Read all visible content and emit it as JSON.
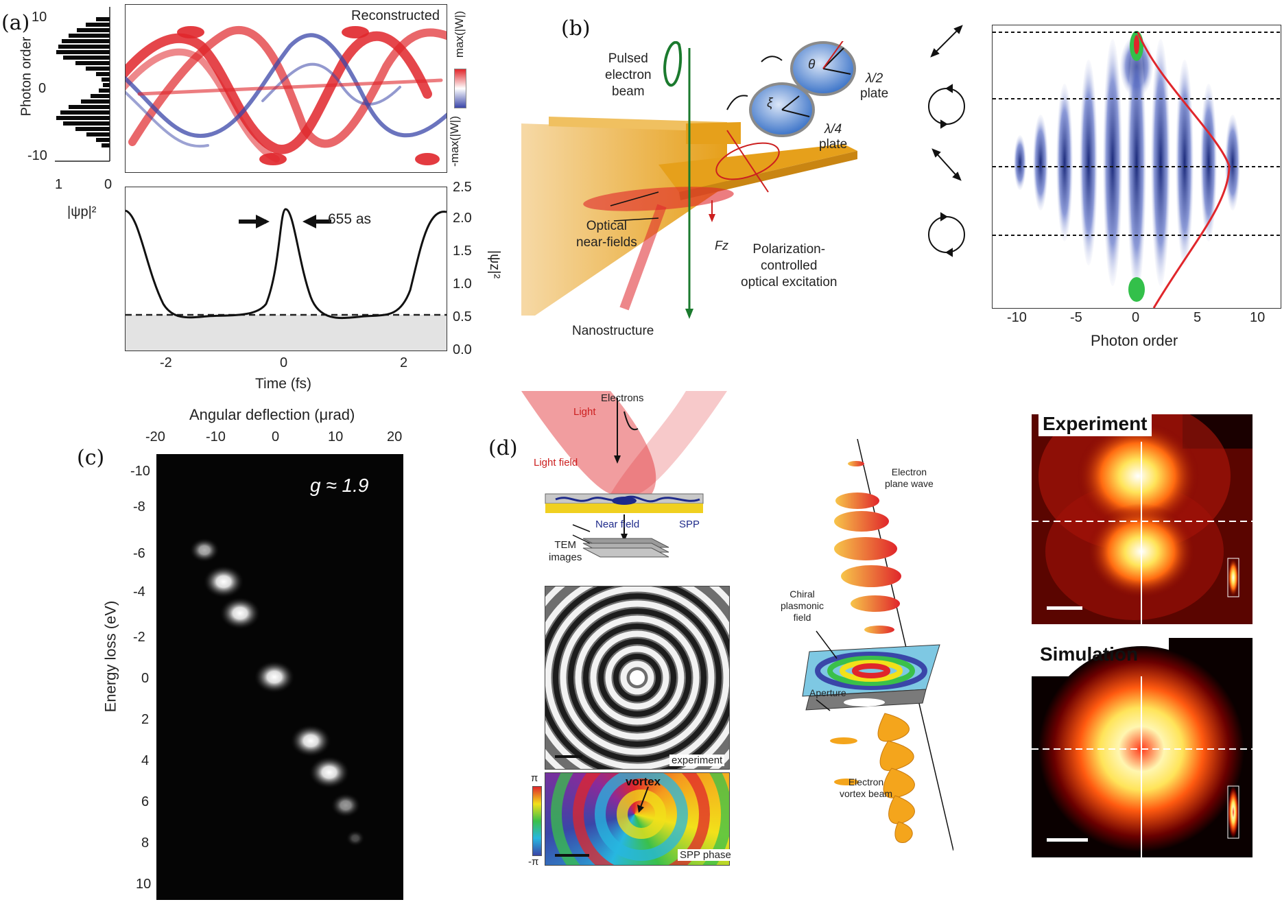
{
  "panels": {
    "a": {
      "letter": "(a)",
      "reconstructed_label": "Reconstructed",
      "colorbar_top": "max(|W|)",
      "colorbar_bottom": "-max(|W|)",
      "hist_ylabel": "Photon order",
      "hist_yticks": [
        "10",
        "0",
        "-10"
      ],
      "hist_xticks": [
        "1",
        "0"
      ],
      "hist_xlabel": "|ψp|²",
      "time_xlabel": "Time (fs)",
      "time_xticks": [
        "-2",
        "0",
        "2"
      ],
      "right_yticks": [
        "2.5",
        "2.0",
        "1.5",
        "1.0",
        "0.5",
        "0.0"
      ],
      "right_ylabel": "|ψz|²",
      "pulse_width": "655 as"
    },
    "b": {
      "letter": "(b)",
      "pulsed_beam": [
        "Pulsed",
        "electron",
        "beam"
      ],
      "half_wave": [
        "λ/2",
        "plate"
      ],
      "quarter_wave": [
        "λ/4",
        "plate"
      ],
      "optical_near_fields": [
        "Optical",
        "near-fields"
      ],
      "fz": "Fz",
      "polarization": [
        "Polarization-",
        "controlled",
        "optical excitation"
      ],
      "nanostructure": "Nanostructure",
      "theta": "θ",
      "xi": "ξ",
      "xlabel": "Photon order",
      "xticks": [
        "-10",
        "-5",
        "0",
        "5",
        "10"
      ]
    },
    "c": {
      "letter": "(c)",
      "top_label": "Angular deflection (μrad)",
      "top_ticks": [
        "-20",
        "-10",
        "0",
        "10",
        "20"
      ],
      "ylabel": "Energy loss (eV)",
      "yticks": [
        "-10",
        "-8",
        "-6",
        "-4",
        "-2",
        "0",
        "2",
        "4",
        "6",
        "8",
        "10"
      ],
      "g_label": "g ≈ 1.9"
    },
    "d": {
      "letter": "(d)",
      "electrons": "Electrons",
      "light": "Light",
      "light_field": "Light field",
      "near_field": "Near field",
      "spp": "SPP",
      "tem": [
        "TEM",
        "images"
      ],
      "experiment_small": "experiment",
      "pi_top": "π",
      "pi_bottom": "-π",
      "vortex": "vortex",
      "spp_phase": "SPP phase",
      "plane_wave": [
        "Electron",
        "plane wave"
      ],
      "chiral": [
        "Chiral",
        "plasmonic",
        "field"
      ],
      "aperture": "Aperture",
      "vortex_beam": [
        "Electron",
        "vortex beam"
      ],
      "experiment_title": "Experiment",
      "simulation_title": "Simulation"
    }
  },
  "colors": {
    "wigner_red": "#e0262b",
    "wigner_blue": "#3a46a8",
    "gold": "#e6a01b",
    "dark": "#0a0a0a"
  }
}
